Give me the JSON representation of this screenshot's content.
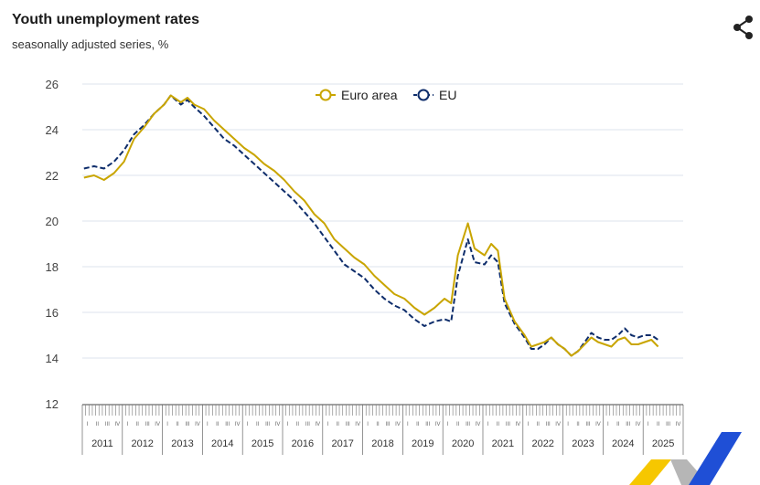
{
  "header": {
    "title": "Youth unemployment rates",
    "subtitle": "seasonally adjusted series, %"
  },
  "icons": {
    "share": "share-icon"
  },
  "colors": {
    "euro_area": "#c9a500",
    "eu": "#0e2d6b",
    "grid": "#dde3ee",
    "logo_yellow": "#f6c700",
    "logo_blue": "#1f4fd6",
    "logo_grey": "#b6b6b6"
  },
  "chart_data": {
    "type": "line",
    "title": "Youth unemployment rates",
    "subtitle": "seasonally adjusted series, %",
    "xlabel": "",
    "ylabel": "",
    "ylim": [
      12,
      26
    ],
    "yticks": [
      12,
      14,
      16,
      18,
      20,
      22,
      24,
      26
    ],
    "x_start": "2011-01",
    "x_end": "2025-05",
    "years": [
      "2011",
      "2012",
      "2013",
      "2014",
      "2015",
      "2016",
      "2017",
      "2018",
      "2019",
      "2020",
      "2021",
      "2022",
      "2023",
      "2024",
      "2025"
    ],
    "quarter_labels": [
      "I",
      "II",
      "III",
      "IV"
    ],
    "grid": true,
    "legend_position": "top-center",
    "series": [
      {
        "name": "Euro area",
        "style": "solid",
        "color": "#c9a500",
        "points": [
          [
            "2011-01",
            21.9
          ],
          [
            "2011-04",
            22.0
          ],
          [
            "2011-07",
            21.8
          ],
          [
            "2011-10",
            22.1
          ],
          [
            "2012-01",
            22.6
          ],
          [
            "2012-04",
            23.6
          ],
          [
            "2012-07",
            24.1
          ],
          [
            "2012-10",
            24.7
          ],
          [
            "2013-01",
            25.1
          ],
          [
            "2013-03",
            25.5
          ],
          [
            "2013-06",
            25.2
          ],
          [
            "2013-08",
            25.4
          ],
          [
            "2013-10",
            25.1
          ],
          [
            "2014-01",
            24.9
          ],
          [
            "2014-04",
            24.4
          ],
          [
            "2014-07",
            24.0
          ],
          [
            "2014-10",
            23.6
          ],
          [
            "2015-01",
            23.2
          ],
          [
            "2015-04",
            22.9
          ],
          [
            "2015-07",
            22.5
          ],
          [
            "2015-10",
            22.2
          ],
          [
            "2016-01",
            21.8
          ],
          [
            "2016-04",
            21.3
          ],
          [
            "2016-07",
            20.9
          ],
          [
            "2016-10",
            20.3
          ],
          [
            "2017-01",
            19.9
          ],
          [
            "2017-04",
            19.2
          ],
          [
            "2017-07",
            18.8
          ],
          [
            "2017-10",
            18.4
          ],
          [
            "2018-01",
            18.1
          ],
          [
            "2018-04",
            17.6
          ],
          [
            "2018-07",
            17.2
          ],
          [
            "2018-10",
            16.8
          ],
          [
            "2019-01",
            16.6
          ],
          [
            "2019-04",
            16.2
          ],
          [
            "2019-07",
            15.9
          ],
          [
            "2019-10",
            16.2
          ],
          [
            "2020-01",
            16.6
          ],
          [
            "2020-03",
            16.4
          ],
          [
            "2020-05",
            18.5
          ],
          [
            "2020-08",
            19.9
          ],
          [
            "2020-10",
            18.8
          ],
          [
            "2021-01",
            18.5
          ],
          [
            "2021-03",
            19.0
          ],
          [
            "2021-05",
            18.7
          ],
          [
            "2021-07",
            16.6
          ],
          [
            "2021-10",
            15.6
          ],
          [
            "2022-01",
            15.0
          ],
          [
            "2022-03",
            14.5
          ],
          [
            "2022-05",
            14.6
          ],
          [
            "2022-07",
            14.7
          ],
          [
            "2022-09",
            14.9
          ],
          [
            "2022-11",
            14.6
          ],
          [
            "2023-01",
            14.4
          ],
          [
            "2023-03",
            14.1
          ],
          [
            "2023-05",
            14.3
          ],
          [
            "2023-07",
            14.6
          ],
          [
            "2023-09",
            14.9
          ],
          [
            "2023-11",
            14.7
          ],
          [
            "2024-01",
            14.6
          ],
          [
            "2024-03",
            14.5
          ],
          [
            "2024-05",
            14.8
          ],
          [
            "2024-07",
            14.9
          ],
          [
            "2024-09",
            14.6
          ],
          [
            "2024-11",
            14.6
          ],
          [
            "2025-01",
            14.7
          ],
          [
            "2025-03",
            14.8
          ],
          [
            "2025-05",
            14.5
          ]
        ]
      },
      {
        "name": "EU",
        "style": "dashed",
        "color": "#0e2d6b",
        "points": [
          [
            "2011-01",
            22.3
          ],
          [
            "2011-04",
            22.4
          ],
          [
            "2011-07",
            22.3
          ],
          [
            "2011-10",
            22.6
          ],
          [
            "2012-01",
            23.1
          ],
          [
            "2012-04",
            23.8
          ],
          [
            "2012-07",
            24.2
          ],
          [
            "2012-10",
            24.7
          ],
          [
            "2013-01",
            25.1
          ],
          [
            "2013-03",
            25.5
          ],
          [
            "2013-06",
            25.1
          ],
          [
            "2013-08",
            25.3
          ],
          [
            "2013-10",
            25.0
          ],
          [
            "2014-01",
            24.6
          ],
          [
            "2014-04",
            24.1
          ],
          [
            "2014-07",
            23.6
          ],
          [
            "2014-10",
            23.3
          ],
          [
            "2015-01",
            22.9
          ],
          [
            "2015-04",
            22.5
          ],
          [
            "2015-07",
            22.1
          ],
          [
            "2015-10",
            21.7
          ],
          [
            "2016-01",
            21.3
          ],
          [
            "2016-04",
            20.9
          ],
          [
            "2016-07",
            20.4
          ],
          [
            "2016-10",
            19.9
          ],
          [
            "2017-01",
            19.3
          ],
          [
            "2017-04",
            18.7
          ],
          [
            "2017-07",
            18.1
          ],
          [
            "2017-10",
            17.8
          ],
          [
            "2018-01",
            17.5
          ],
          [
            "2018-04",
            17.0
          ],
          [
            "2018-07",
            16.6
          ],
          [
            "2018-10",
            16.3
          ],
          [
            "2019-01",
            16.1
          ],
          [
            "2019-04",
            15.7
          ],
          [
            "2019-07",
            15.4
          ],
          [
            "2019-10",
            15.6
          ],
          [
            "2020-01",
            15.7
          ],
          [
            "2020-03",
            15.6
          ],
          [
            "2020-05",
            17.6
          ],
          [
            "2020-08",
            19.2
          ],
          [
            "2020-10",
            18.2
          ],
          [
            "2021-01",
            18.1
          ],
          [
            "2021-03",
            18.5
          ],
          [
            "2021-05",
            18.2
          ],
          [
            "2021-07",
            16.4
          ],
          [
            "2021-10",
            15.5
          ],
          [
            "2022-01",
            14.9
          ],
          [
            "2022-03",
            14.4
          ],
          [
            "2022-05",
            14.4
          ],
          [
            "2022-07",
            14.6
          ],
          [
            "2022-09",
            14.9
          ],
          [
            "2022-11",
            14.6
          ],
          [
            "2023-01",
            14.4
          ],
          [
            "2023-03",
            14.1
          ],
          [
            "2023-05",
            14.3
          ],
          [
            "2023-07",
            14.7
          ],
          [
            "2023-09",
            15.1
          ],
          [
            "2023-11",
            14.9
          ],
          [
            "2024-01",
            14.8
          ],
          [
            "2024-03",
            14.8
          ],
          [
            "2024-05",
            15.0
          ],
          [
            "2024-07",
            15.3
          ],
          [
            "2024-09",
            15.0
          ],
          [
            "2024-11",
            14.9
          ],
          [
            "2025-01",
            15.0
          ],
          [
            "2025-03",
            15.0
          ],
          [
            "2025-05",
            14.8
          ]
        ]
      }
    ]
  }
}
